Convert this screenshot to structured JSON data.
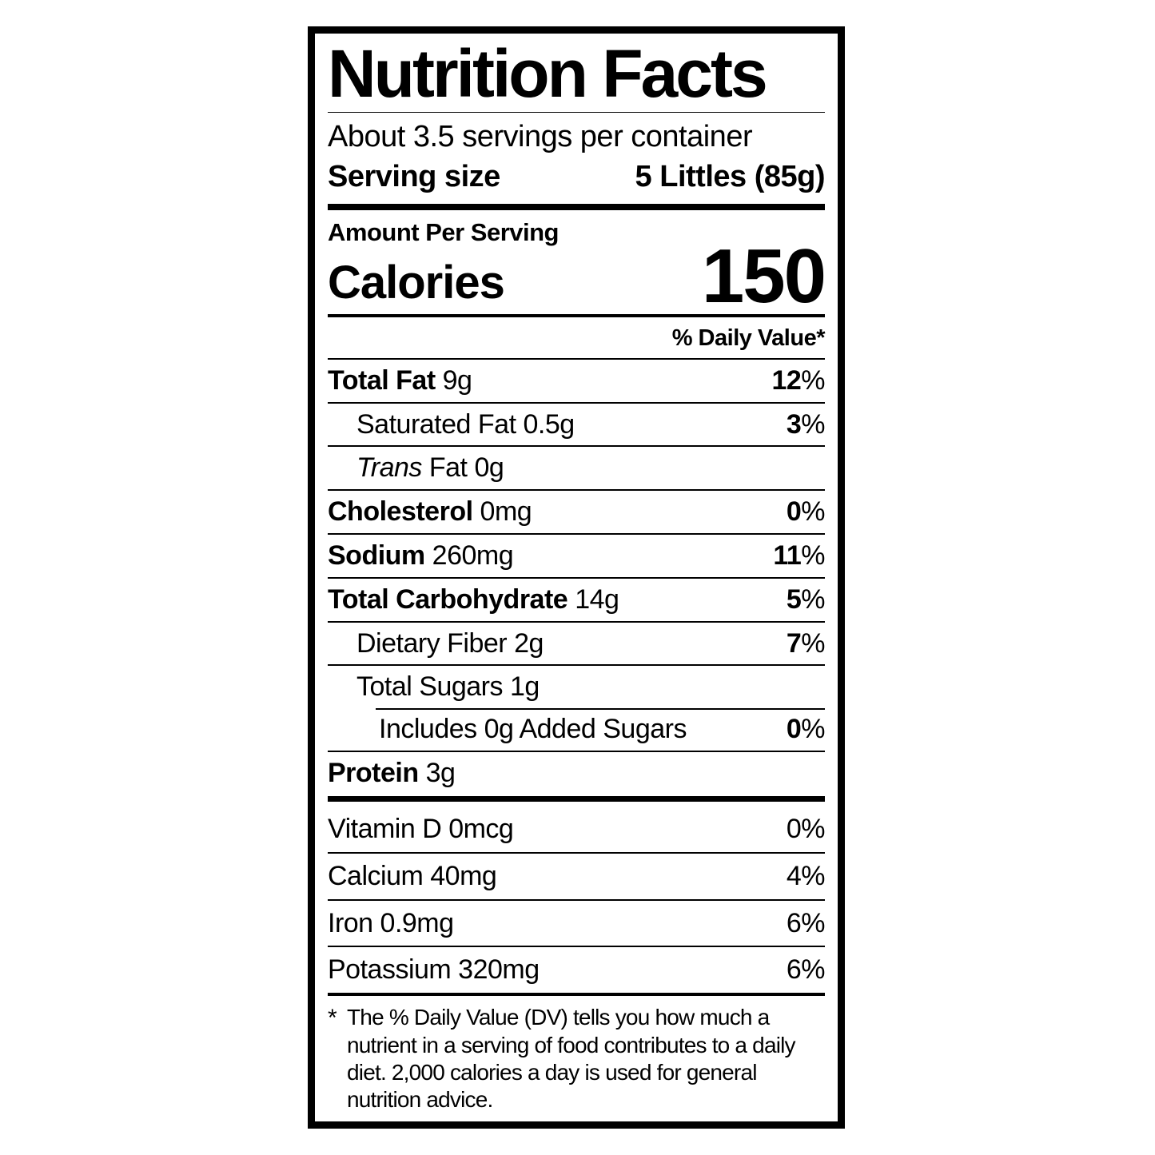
{
  "label": {
    "title": "Nutrition Facts",
    "servings_per_container": "About 3.5 servings per container",
    "serving_size": {
      "label": "Serving size",
      "value": "5 Littles (85g)"
    },
    "amount_per_serving": "Amount Per Serving",
    "calories": {
      "label": "Calories",
      "value": "150"
    },
    "daily_value_header": "% Daily Value*",
    "nutrient_rows": [
      {
        "name": "Total Fat",
        "amount": "9g",
        "dv": "12%",
        "bold": true,
        "indent": 0
      },
      {
        "name": "Saturated Fat",
        "amount": "0.5g",
        "dv": "3%",
        "bold": false,
        "indent": 1
      },
      {
        "name_italic": "Trans",
        "name": " Fat",
        "amount": "0g",
        "dv": null,
        "bold": false,
        "indent": 1
      },
      {
        "name": "Cholesterol",
        "amount": "0mg",
        "dv": "0%",
        "bold": true,
        "indent": 0
      },
      {
        "name": "Sodium",
        "amount": "260mg",
        "dv": "11%",
        "bold": true,
        "indent": 0
      },
      {
        "name": "Total Carbohydrate",
        "amount": "14g",
        "dv": "5%",
        "bold": true,
        "indent": 0
      },
      {
        "name": "Dietary Fiber",
        "amount": "2g",
        "dv": "7%",
        "bold": false,
        "indent": 1
      },
      {
        "name": "Total Sugars",
        "amount": "1g",
        "dv": null,
        "bold": false,
        "indent": 1
      },
      {
        "name": "Includes 0g Added Sugars",
        "amount": "",
        "dv": "0%",
        "bold": false,
        "indent": 2,
        "partial_rule": true
      },
      {
        "name": "Protein",
        "amount": "3g",
        "dv": null,
        "bold": true,
        "indent": 0
      }
    ],
    "vitamin_rows": [
      {
        "name": "Vitamin D",
        "amount": "0mcg",
        "dv": "0%"
      },
      {
        "name": "Calcium",
        "amount": "40mg",
        "dv": "4%"
      },
      {
        "name": "Iron",
        "amount": "0.9mg",
        "dv": "6%"
      },
      {
        "name": "Potassium",
        "amount": "320mg",
        "dv": "6%"
      }
    ],
    "footnote": {
      "marker": "*",
      "text": "The % Daily Value (DV) tells you how much a nutrient in a serving of food contributes to a daily diet. 2,000 calories a day is used for general nutrition advice."
    },
    "colors": {
      "ink": "#000000",
      "paper": "#ffffff"
    }
  }
}
